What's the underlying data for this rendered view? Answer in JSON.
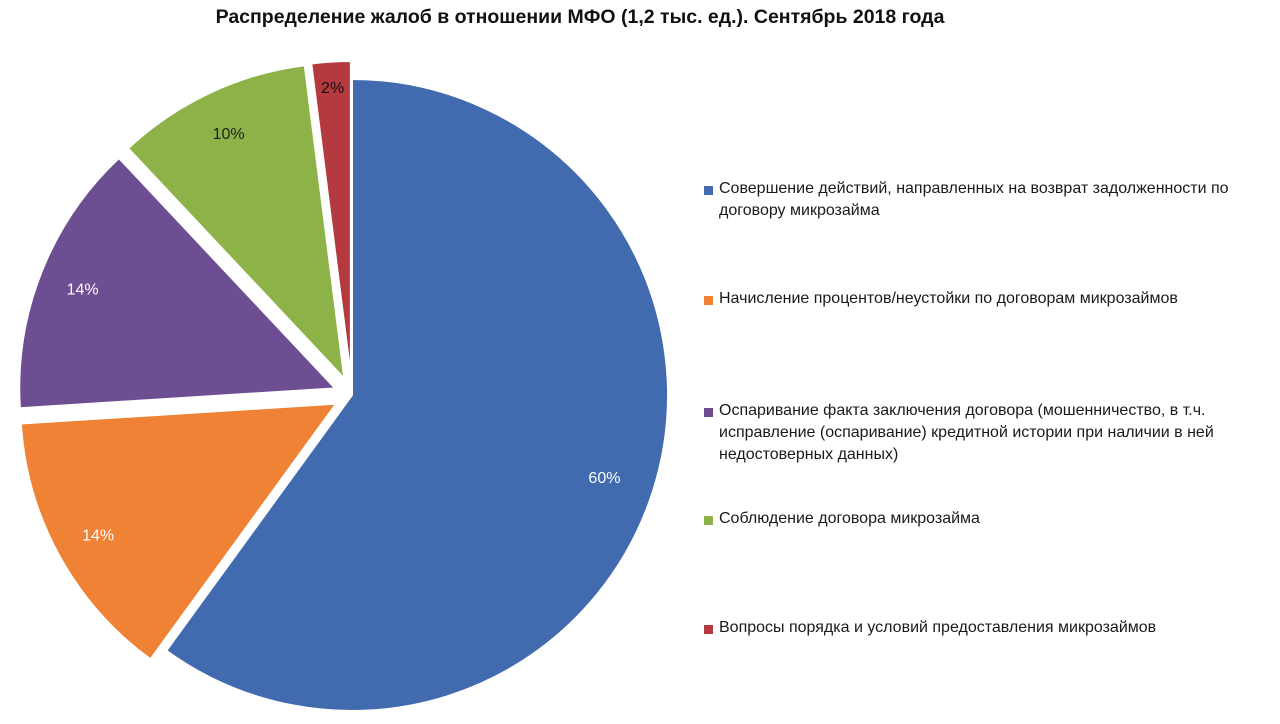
{
  "chart_data": {
    "type": "pie",
    "title": "Распределение жалоб в отношении МФО (1,2 тыс. ед.). Сентябрь 2018 года",
    "unit": "%",
    "legend_position": "right",
    "slices": [
      {
        "name": "Совершение действий, направленных на возврат задолженности по договору микрозайма",
        "value": 60,
        "label": "60%",
        "color": "#416bae",
        "label_color": "#ffffff"
      },
      {
        "name": "Начисление процентов/неустойки по договорам микрозаймов",
        "value": 14,
        "label": "14%",
        "color": "#ef8235",
        "label_color": "#ffffff"
      },
      {
        "name": "Оспаривание факта заключения договора (мошенничество, в т.ч. исправление (оспаривание) кредитной истории при наличии в ней недостоверных данных)",
        "value": 14,
        "label": "14%",
        "color": "#6e4e92",
        "label_color": "#ffffff"
      },
      {
        "name": "Соблюдение договора микрозайма",
        "value": 10,
        "label": "10%",
        "color": "#8db248",
        "label_color": "#222222"
      },
      {
        "name": "Вопросы порядка и условий предоставления микрозаймов",
        "value": 2,
        "label": "2%",
        "color": "#b53a40",
        "label_color": "#111111"
      }
    ]
  }
}
